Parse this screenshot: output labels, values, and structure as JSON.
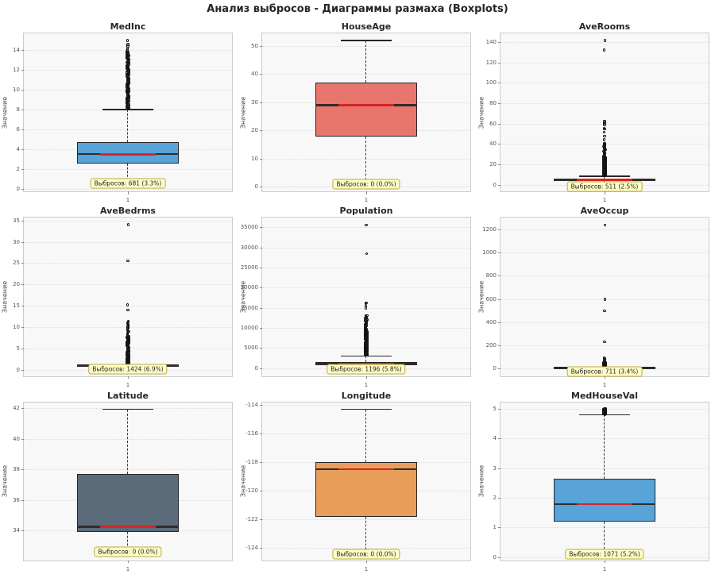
{
  "figure_title": "Анализ выбросов - Диаграммы размаха (Boxplots)",
  "style": {
    "median_red": "#d62424",
    "box_edge": "#262626",
    "whisker_color": "#3b3b3b",
    "grid_color": "#dcdcdc",
    "axes_bg": "#f8f8f8",
    "annotation_bg": "#ffffc8",
    "annotation_border": "#b9a93c",
    "tick_color": "#555555"
  },
  "chart_data": [
    {
      "type": "box",
      "title": "MedInc",
      "ylabel": "Значение",
      "xtick": "1",
      "color": "#58a3d7",
      "ylim": [
        -0.23,
        15.73
      ],
      "yticks": [
        0,
        2,
        4,
        6,
        8,
        10,
        12,
        14
      ],
      "box": {
        "q1": 2.56,
        "median": 3.53,
        "q3": 4.74,
        "whisker_low": 0.5,
        "whisker_high": 8.01
      },
      "clusters": [
        {
          "from": 8.05,
          "to": 13.9,
          "count": 130,
          "spread": 1.5
        }
      ],
      "outliers": [
        14.05,
        14.2,
        14.45,
        14.6,
        15.0
      ],
      "annotation": {
        "text": "Выбросов: 681 (3.3%)",
        "y": 0.55
      }
    },
    {
      "type": "box",
      "title": "HouseAge",
      "ylabel": "Значение",
      "xtick": "1",
      "color": "#e8766c",
      "ylim": [
        -1.55,
        54.55
      ],
      "yticks": [
        0,
        10,
        20,
        30,
        40,
        50
      ],
      "box": {
        "q1": 18,
        "median": 29,
        "q3": 37,
        "whisker_low": 1,
        "whisker_high": 52
      },
      "clusters": [],
      "outliers": [],
      "annotation": {
        "text": "Выбросов: 0 (0.0%)",
        "y": 1.1
      }
    },
    {
      "type": "box",
      "title": "AveRooms",
      "ylabel": "Значение",
      "xtick": "1",
      "color": "#2e6e52",
      "ylim": [
        -6.2,
        149.0
      ],
      "yticks": [
        0,
        20,
        40,
        60,
        80,
        100,
        120,
        140
      ],
      "box": {
        "q1": 4.44,
        "median": 5.23,
        "q3": 6.05,
        "whisker_low": 2.03,
        "whisker_high": 8.47
      },
      "clusters": [
        {
          "from": 8.7,
          "to": 27,
          "count": 130,
          "spread": 1.5
        },
        {
          "from": 27,
          "to": 41.5,
          "count": 22,
          "spread": 1.0
        }
      ],
      "outliers": [
        44.6,
        47.8,
        52.1,
        55.2,
        56.0,
        58.8,
        60.6,
        61.7,
        62.3,
        132.5,
        141.9
      ],
      "annotation": {
        "text": "Выбросов: 511 (2.5%)",
        "y": -1.5
      }
    },
    {
      "type": "box",
      "title": "AveBedrms",
      "ylabel": "Значение",
      "xtick": "1",
      "color": "#97754c",
      "ylim": [
        -1.35,
        35.75
      ],
      "yticks": [
        0,
        5,
        10,
        15,
        20,
        25,
        30,
        35
      ],
      "box": {
        "q1": 1.01,
        "median": 1.05,
        "q3": 1.1,
        "whisker_low": 0.87,
        "whisker_high": 1.24
      },
      "clusters": [
        {
          "from": 1.35,
          "to": 8.0,
          "count": 120,
          "spread": 1.3
        },
        {
          "from": 8.0,
          "to": 11.6,
          "count": 18,
          "spread": 0.9
        }
      ],
      "outliers": [
        14.1,
        15.3,
        25.6,
        34.1
      ],
      "annotation": {
        "text": "Выбросов: 1424 (6.9%)",
        "y": 0.25
      }
    },
    {
      "type": "box",
      "title": "Population",
      "ylabel": "Значение",
      "xtick": "1",
      "color": "#7e5fa6",
      "ylim": [
        -1781,
        37466
      ],
      "yticks": [
        0,
        5000,
        10000,
        15000,
        20000,
        25000,
        30000,
        35000
      ],
      "box": {
        "q1": 787,
        "median": 1166,
        "q3": 1725,
        "whisker_low": 3,
        "whisker_high": 3132
      },
      "clusters": [
        {
          "from": 3250,
          "to": 9500,
          "count": 130,
          "spread": 1.5
        },
        {
          "from": 9500,
          "to": 13300,
          "count": 26,
          "spread": 1.0
        }
      ],
      "outliers": [
        15050,
        15480,
        16150,
        16350,
        28550,
        35682
      ],
      "annotation": {
        "text": "Выбросов: 1196 (5.8%)",
        "y": -150
      }
    },
    {
      "type": "box",
      "title": "AveOccup",
      "ylabel": "Значение",
      "xtick": "1",
      "color": "#ee8a3d",
      "ylim": [
        -61.5,
        1305.5
      ],
      "yticks": [
        0,
        200,
        400,
        600,
        800,
        1000,
        1200
      ],
      "box": {
        "q1": 2.43,
        "median": 2.82,
        "q3": 3.28,
        "whisker_low": 1.15,
        "whisker_high": 4.56
      },
      "clusters": [
        {
          "from": 6,
          "to": 55,
          "count": 55,
          "spread": 1.2
        }
      ],
      "outliers": [
        62,
        68,
        75,
        84,
        91,
        232,
        502,
        599,
        1243.3
      ],
      "annotation": {
        "text": "Выбросов: 711 (3.4%)",
        "y": -22
      }
    },
    {
      "type": "box",
      "title": "Latitude",
      "ylabel": "Значение",
      "xtick": "1",
      "color": "#5c6b7a",
      "ylim": [
        32.07,
        42.42
      ],
      "yticks": [
        34,
        36,
        38,
        40,
        42
      ],
      "box": {
        "q1": 33.93,
        "median": 34.26,
        "q3": 37.71,
        "whisker_low": 32.54,
        "whisker_high": 41.95
      },
      "clusters": [],
      "outliers": [],
      "annotation": {
        "text": "Выбросов: 0 (0.0%)",
        "y": 32.62
      }
    },
    {
      "type": "box",
      "title": "Longitude",
      "ylabel": "Значение",
      "xtick": "1",
      "color": "#e99d5b",
      "ylim": [
        -124.85,
        -113.81
      ],
      "yticks": [
        -114,
        -116,
        -118,
        -120,
        -122,
        -124
      ],
      "box": {
        "q1": -121.8,
        "median": -118.49,
        "q3": -118.01,
        "whisker_low": -124.35,
        "whisker_high": -114.31
      },
      "clusters": [],
      "outliers": [],
      "annotation": {
        "text": "Выбросов: 0 (0.0%)",
        "y": -124.42
      }
    },
    {
      "type": "box",
      "title": "MedHouseVal",
      "ylabel": "Значение",
      "xtick": "1",
      "color": "#58a3d7",
      "ylim": [
        -0.09,
        5.24
      ],
      "yticks": [
        0,
        1,
        2,
        3,
        4,
        5
      ],
      "box": {
        "q1": 1.2,
        "median": 1.8,
        "q3": 2.65,
        "whisker_low": 0.15,
        "whisker_high": 4.82
      },
      "clusters": [
        {
          "from": 4.83,
          "to": 5.02,
          "count": 45,
          "spread": 1.8
        }
      ],
      "outliers": [],
      "annotation": {
        "text": "Выбросов: 1071 (5.2%)",
        "y": 0.12
      }
    }
  ]
}
